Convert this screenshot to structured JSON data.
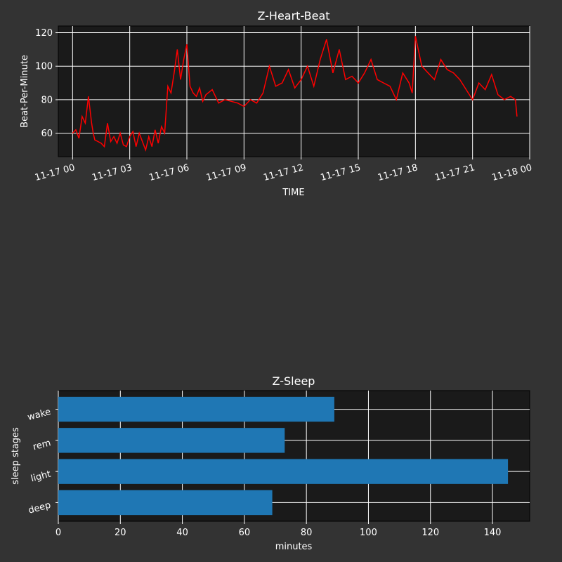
{
  "chart_data": [
    {
      "type": "line",
      "title": "Z-Heart-Beat",
      "xlabel": "TIME",
      "ylabel": "Beat-Per-Minute",
      "color": "#ff0000",
      "xlim": [
        "2023-11-16T23:15",
        "2023-11-18T00:00"
      ],
      "ylim": [
        46,
        124
      ],
      "xticks": [
        "11-17 00",
        "11-17 03",
        "11-17 06",
        "11-17 09",
        "11-17 12",
        "11-17 15",
        "11-17 18",
        "11-17 21",
        "11-18 00"
      ],
      "yticks": [
        60,
        80,
        100,
        120
      ],
      "grid": true,
      "series": [
        {
          "x": [
            "2023-11-17T00:00",
            "2023-11-17T00:10",
            "2023-11-17T00:20",
            "2023-11-17T00:30",
            "2023-11-17T00:40",
            "2023-11-17T00:50",
            "2023-11-17T01:00",
            "2023-11-17T01:05",
            "2023-11-17T01:10",
            "2023-11-17T01:20",
            "2023-11-17T01:30",
            "2023-11-17T01:40",
            "2023-11-17T01:50",
            "2023-11-17T02:00",
            "2023-11-17T02:10",
            "2023-11-17T02:20",
            "2023-11-17T02:30",
            "2023-11-17T02:40",
            "2023-11-17T02:50",
            "2023-11-17T03:00",
            "2023-11-17T03:10",
            "2023-11-17T03:20",
            "2023-11-17T03:30",
            "2023-11-17T03:40",
            "2023-11-17T03:50",
            "2023-11-17T04:00",
            "2023-11-17T04:10",
            "2023-11-17T04:20",
            "2023-11-17T04:30",
            "2023-11-17T04:40",
            "2023-11-17T04:50",
            "2023-11-17T05:00",
            "2023-11-17T05:10",
            "2023-11-17T05:20",
            "2023-11-17T05:30",
            "2023-11-17T05:40",
            "2023-11-17T05:50",
            "2023-11-17T06:00",
            "2023-11-17T06:10",
            "2023-11-17T06:20",
            "2023-11-17T06:30",
            "2023-11-17T06:40",
            "2023-11-17T06:50",
            "2023-11-17T07:00",
            "2023-11-17T07:20",
            "2023-11-17T07:40",
            "2023-11-17T08:00",
            "2023-11-17T08:20",
            "2023-11-17T08:40",
            "2023-11-17T09:00",
            "2023-11-17T09:20",
            "2023-11-17T09:40",
            "2023-11-17T10:00",
            "2023-11-17T10:20",
            "2023-11-17T10:40",
            "2023-11-17T11:00",
            "2023-11-17T11:20",
            "2023-11-17T11:40",
            "2023-11-17T12:00",
            "2023-11-17T12:20",
            "2023-11-17T12:40",
            "2023-11-17T13:00",
            "2023-11-17T13:20",
            "2023-11-17T13:40",
            "2023-11-17T14:00",
            "2023-11-17T14:20",
            "2023-11-17T14:40",
            "2023-11-17T15:00",
            "2023-11-17T15:20",
            "2023-11-17T15:40",
            "2023-11-17T16:00",
            "2023-11-17T16:20",
            "2023-11-17T16:40",
            "2023-11-17T17:00",
            "2023-11-17T17:20",
            "2023-11-17T17:40",
            "2023-11-17T17:50",
            "2023-11-17T18:00",
            "2023-11-17T18:20",
            "2023-11-17T18:40",
            "2023-11-17T19:00",
            "2023-11-17T19:20",
            "2023-11-17T19:40",
            "2023-11-17T20:00",
            "2023-11-17T20:20",
            "2023-11-17T20:40",
            "2023-11-17T21:00",
            "2023-11-17T21:20",
            "2023-11-17T21:40",
            "2023-11-17T22:00",
            "2023-11-17T22:20",
            "2023-11-17T22:40",
            "2023-11-17T23:00",
            "2023-11-17T23:15",
            "2023-11-17T23:20"
          ],
          "y": [
            60,
            62,
            57,
            70,
            66,
            82,
            66,
            60,
            56,
            55,
            54,
            52,
            66,
            55,
            58,
            54,
            60,
            53,
            52,
            58,
            61,
            52,
            60,
            55,
            50,
            58,
            52,
            62,
            54,
            64,
            60,
            88,
            84,
            96,
            110,
            92,
            104,
            113,
            88,
            84,
            82,
            87,
            79,
            83,
            86,
            78,
            80,
            79,
            78,
            76,
            80,
            78,
            84,
            100,
            88,
            90,
            98,
            87,
            92,
            100,
            88,
            104,
            116,
            96,
            110,
            92,
            94,
            90,
            96,
            104,
            92,
            90,
            88,
            80,
            96,
            90,
            84,
            118,
            100,
            96,
            92,
            104,
            98,
            96,
            92,
            86,
            80,
            90,
            86,
            95,
            83,
            80,
            82,
            80,
            70
          ]
        }
      ]
    },
    {
      "type": "bar",
      "orientation": "horizontal",
      "title": "Z-Sleep",
      "xlabel": "minutes",
      "ylabel": "sleep stages",
      "color": "#1f77b4",
      "categories": [
        "deep",
        "light",
        "rem",
        "wake"
      ],
      "values": [
        69,
        145,
        73,
        89
      ],
      "xlim": [
        0,
        152
      ],
      "xticks": [
        0,
        20,
        40,
        60,
        80,
        100,
        120,
        140
      ],
      "grid": true
    }
  ]
}
